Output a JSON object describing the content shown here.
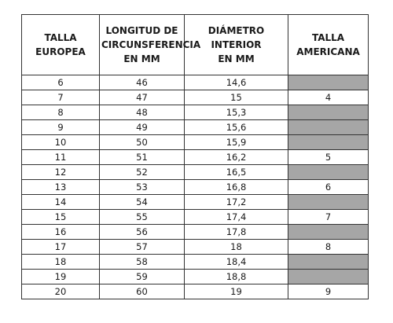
{
  "table": {
    "headers": [
      "TALLA\nEUROPEA",
      "LONGITUD DE\nCIRCUNSFERENCIA\nEN MM",
      "DIÁMETRO INTERIOR\nEN MM",
      "TALLA\nAMERICANA"
    ],
    "rows": [
      {
        "eu": "6",
        "circ": "46",
        "diam": "14,6",
        "us": ""
      },
      {
        "eu": "7",
        "circ": "47",
        "diam": "15",
        "us": "4"
      },
      {
        "eu": "8",
        "circ": "48",
        "diam": "15,3",
        "us": ""
      },
      {
        "eu": "9",
        "circ": "49",
        "diam": "15,6",
        "us": ""
      },
      {
        "eu": "10",
        "circ": "50",
        "diam": "15,9",
        "us": ""
      },
      {
        "eu": "11",
        "circ": "51",
        "diam": "16,2",
        "us": "5"
      },
      {
        "eu": "12",
        "circ": "52",
        "diam": "16,5",
        "us": ""
      },
      {
        "eu": "13",
        "circ": "53",
        "diam": "16,8",
        "us": "6"
      },
      {
        "eu": "14",
        "circ": "54",
        "diam": "17,2",
        "us": ""
      },
      {
        "eu": "15",
        "circ": "55",
        "diam": "17,4",
        "us": "7"
      },
      {
        "eu": "16",
        "circ": "56",
        "diam": "17,8",
        "us": ""
      },
      {
        "eu": "17",
        "circ": "57",
        "diam": "18",
        "us": "8"
      },
      {
        "eu": "18",
        "circ": "58",
        "diam": "18,4",
        "us": ""
      },
      {
        "eu": "19",
        "circ": "59",
        "diam": "18,8",
        "us": ""
      },
      {
        "eu": "20",
        "circ": "60",
        "diam": "19",
        "us": "9"
      }
    ],
    "empty_cell_color": "#a6a6a6"
  }
}
